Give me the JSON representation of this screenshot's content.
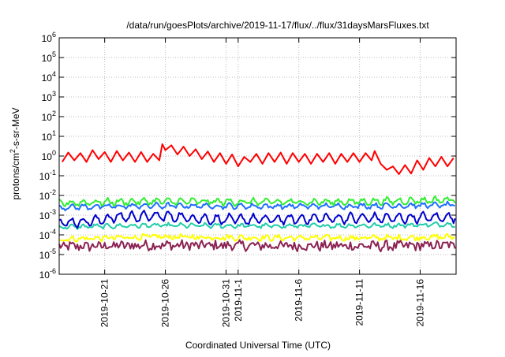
{
  "chart_data": {
    "type": "line",
    "title": "/data/run/goesPlots/archive/2019-11-17/flux/../flux/31daysMarsFluxes.txt",
    "xlabel": "Coordinated Universal Time (UTC)",
    "ylabel": "protons/cm²-s-sr-MeV",
    "y_scale": "log",
    "ylim": [
      1e-06,
      1000000.0
    ],
    "xlim": [
      "2019-10-17T06:00",
      "2019-11-18T23:00"
    ],
    "x_ticks": [
      {
        "date": "2019-10-21",
        "label": "2019-10-21"
      },
      {
        "date": "2019-10-26",
        "label": "2019-10-26"
      },
      {
        "date": "2019-10-31",
        "label": "2019-10-31"
      },
      {
        "date": "2019-11-01",
        "label": "2019-11-1"
      },
      {
        "date": "2019-11-06",
        "label": "2019-11-6"
      },
      {
        "date": "2019-11-11",
        "label": "2019-11-11"
      },
      {
        "date": "2019-11-16",
        "label": "2019-11-16"
      }
    ],
    "y_ticks": [
      {
        "exp": -6,
        "label": "10",
        "sup": "-6"
      },
      {
        "exp": -5,
        "label": "10",
        "sup": "-5"
      },
      {
        "exp": -4,
        "label": "10",
        "sup": "-4"
      },
      {
        "exp": -3,
        "label": "10",
        "sup": "-3"
      },
      {
        "exp": -2,
        "label": "10",
        "sup": "-2"
      },
      {
        "exp": -1,
        "label": "10",
        "sup": "-1"
      },
      {
        "exp": 0,
        "label": "10",
        "sup": "0"
      },
      {
        "exp": 1,
        "label": "10",
        "sup": "1"
      },
      {
        "exp": 2,
        "label": "10",
        "sup": "2"
      },
      {
        "exp": 3,
        "label": "10",
        "sup": "3"
      },
      {
        "exp": 4,
        "label": "10",
        "sup": "4"
      },
      {
        "exp": 5,
        "label": "10",
        "sup": "5"
      },
      {
        "exp": 6,
        "label": "10",
        "sup": "6"
      }
    ],
    "grid": true,
    "series": [
      {
        "color": "#ff0000",
        "points": [
          [
            "2019-10-17T12:00",
            0.5
          ],
          [
            "2019-10-18T00:00",
            1.5
          ],
          [
            "2019-10-18T12:00",
            0.6
          ],
          [
            "2019-10-19T00:00",
            1.4
          ],
          [
            "2019-10-19T12:00",
            0.5
          ],
          [
            "2019-10-20T00:00",
            2.0
          ],
          [
            "2019-10-20T12:00",
            0.7
          ],
          [
            "2019-10-21T00:00",
            1.6
          ],
          [
            "2019-10-21T12:00",
            0.5
          ],
          [
            "2019-10-22T00:00",
            1.8
          ],
          [
            "2019-10-22T12:00",
            0.6
          ],
          [
            "2019-10-23T00:00",
            1.5
          ],
          [
            "2019-10-23T12:00",
            0.5
          ],
          [
            "2019-10-24T00:00",
            1.6
          ],
          [
            "2019-10-24T12:00",
            0.5
          ],
          [
            "2019-10-25T00:00",
            1.3
          ],
          [
            "2019-10-25T12:00",
            0.6
          ],
          [
            "2019-10-25T18:00",
            4.0
          ],
          [
            "2019-10-26T00:00",
            2.0
          ],
          [
            "2019-10-26T12:00",
            3.5
          ],
          [
            "2019-10-27T00:00",
            1.2
          ],
          [
            "2019-10-27T12:00",
            3.0
          ],
          [
            "2019-10-28T00:00",
            1.0
          ],
          [
            "2019-10-28T12:00",
            2.2
          ],
          [
            "2019-10-29T00:00",
            0.7
          ],
          [
            "2019-10-29T12:00",
            1.7
          ],
          [
            "2019-10-30T00:00",
            0.5
          ],
          [
            "2019-10-30T12:00",
            1.4
          ],
          [
            "2019-10-31T00:00",
            0.4
          ],
          [
            "2019-10-31T12:00",
            1.2
          ],
          [
            "2019-11-01T00:00",
            0.3
          ],
          [
            "2019-11-01T12:00",
            0.9
          ],
          [
            "2019-11-02T00:00",
            0.5
          ],
          [
            "2019-11-02T12:00",
            1.3
          ],
          [
            "2019-11-03T00:00",
            0.4
          ],
          [
            "2019-11-03T12:00",
            1.4
          ],
          [
            "2019-11-04T00:00",
            0.5
          ],
          [
            "2019-11-04T12:00",
            1.5
          ],
          [
            "2019-11-05T00:00",
            0.4
          ],
          [
            "2019-11-05T12:00",
            1.4
          ],
          [
            "2019-11-06T00:00",
            0.5
          ],
          [
            "2019-11-06T12:00",
            1.3
          ],
          [
            "2019-11-07T00:00",
            0.4
          ],
          [
            "2019-11-07T12:00",
            1.3
          ],
          [
            "2019-11-08T00:00",
            0.5
          ],
          [
            "2019-11-08T12:00",
            1.4
          ],
          [
            "2019-11-09T00:00",
            0.4
          ],
          [
            "2019-11-09T12:00",
            1.3
          ],
          [
            "2019-11-10T00:00",
            0.5
          ],
          [
            "2019-11-10T12:00",
            1.4
          ],
          [
            "2019-11-11T00:00",
            0.5
          ],
          [
            "2019-11-11T12:00",
            1.4
          ],
          [
            "2019-11-12T00:00",
            0.6
          ],
          [
            "2019-11-12T06:00",
            1.8
          ],
          [
            "2019-11-12T18:00",
            0.4
          ],
          [
            "2019-11-13T06:00",
            0.2
          ],
          [
            "2019-11-13T18:00",
            0.3
          ],
          [
            "2019-11-14T06:00",
            0.12
          ],
          [
            "2019-11-14T18:00",
            0.35
          ],
          [
            "2019-11-15T06:00",
            0.13
          ],
          [
            "2019-11-15T18:00",
            0.6
          ],
          [
            "2019-11-16T06:00",
            0.2
          ],
          [
            "2019-11-16T18:00",
            0.8
          ],
          [
            "2019-11-17T06:00",
            0.3
          ],
          [
            "2019-11-17T18:00",
            0.9
          ],
          [
            "2019-11-18T06:00",
            0.3
          ],
          [
            "2019-11-18T18:00",
            0.8
          ]
        ]
      },
      {
        "color": "#33ee33",
        "base": 0.0045,
        "amplitude": 0.12,
        "noise": 0.1,
        "points": [
          [
            "2019-10-17T06:00",
            0.004
          ],
          [
            "2019-10-20T00:00",
            0.0045
          ],
          [
            "2019-10-25T00:00",
            0.005
          ],
          [
            "2019-10-30T00:00",
            0.0048
          ],
          [
            "2019-11-04T00:00",
            0.0046
          ],
          [
            "2019-11-09T00:00",
            0.0047
          ],
          [
            "2019-11-14T00:00",
            0.0052
          ],
          [
            "2019-11-18T23:00",
            0.006
          ]
        ]
      },
      {
        "color": "#1f6fff",
        "base": 0.003,
        "amplitude": 0.1,
        "noise": 0.08,
        "points": [
          [
            "2019-10-17T06:00",
            0.0025
          ],
          [
            "2019-10-25T00:00",
            0.003
          ],
          [
            "2019-11-04T00:00",
            0.0028
          ],
          [
            "2019-11-14T00:00",
            0.003
          ],
          [
            "2019-11-18T23:00",
            0.0033
          ]
        ]
      },
      {
        "color": "#0000cc",
        "base": 0.0007,
        "amplitude": 0.22,
        "noise": 0.1,
        "points": [
          [
            "2019-10-17T06:00",
            0.0004
          ],
          [
            "2019-10-20T00:00",
            0.0005
          ],
          [
            "2019-10-22T00:00",
            0.0008
          ],
          [
            "2019-10-26T00:00",
            0.0009
          ],
          [
            "2019-10-30T00:00",
            0.0006
          ],
          [
            "2019-11-04T00:00",
            0.0006
          ],
          [
            "2019-11-09T00:00",
            0.0007
          ],
          [
            "2019-11-14T00:00",
            0.0007
          ],
          [
            "2019-11-18T23:00",
            0.0008
          ]
        ]
      },
      {
        "color": "#22ccaa",
        "base": 0.0003,
        "amplitude": 0.08,
        "noise": 0.07,
        "points": [
          [
            "2019-10-17T06:00",
            0.00025
          ],
          [
            "2019-10-25T00:00",
            0.0003
          ],
          [
            "2019-11-04T00:00",
            0.00028
          ],
          [
            "2019-11-14T00:00",
            0.0003
          ],
          [
            "2019-11-18T23:00",
            0.00035
          ]
        ]
      },
      {
        "color": "#ffff00",
        "base": 7e-05,
        "amplitude": 0.06,
        "noise": 0.12,
        "points": [
          [
            "2019-10-17T06:00",
            6e-05
          ],
          [
            "2019-10-25T00:00",
            8e-05
          ],
          [
            "2019-11-04T00:00",
            7e-05
          ],
          [
            "2019-11-14T00:00",
            7e-05
          ],
          [
            "2019-11-18T23:00",
            8e-05
          ]
        ]
      },
      {
        "color": "#8b2252",
        "base": 2.8e-05,
        "amplitude": 0.05,
        "noise": 0.25,
        "points": [
          [
            "2019-10-17T06:00",
            2.5e-05
          ],
          [
            "2019-10-25T00:00",
            3e-05
          ],
          [
            "2019-11-04T00:00",
            2.8e-05
          ],
          [
            "2019-11-14T00:00",
            2.7e-05
          ],
          [
            "2019-11-18T23:00",
            3e-05
          ]
        ]
      }
    ]
  }
}
